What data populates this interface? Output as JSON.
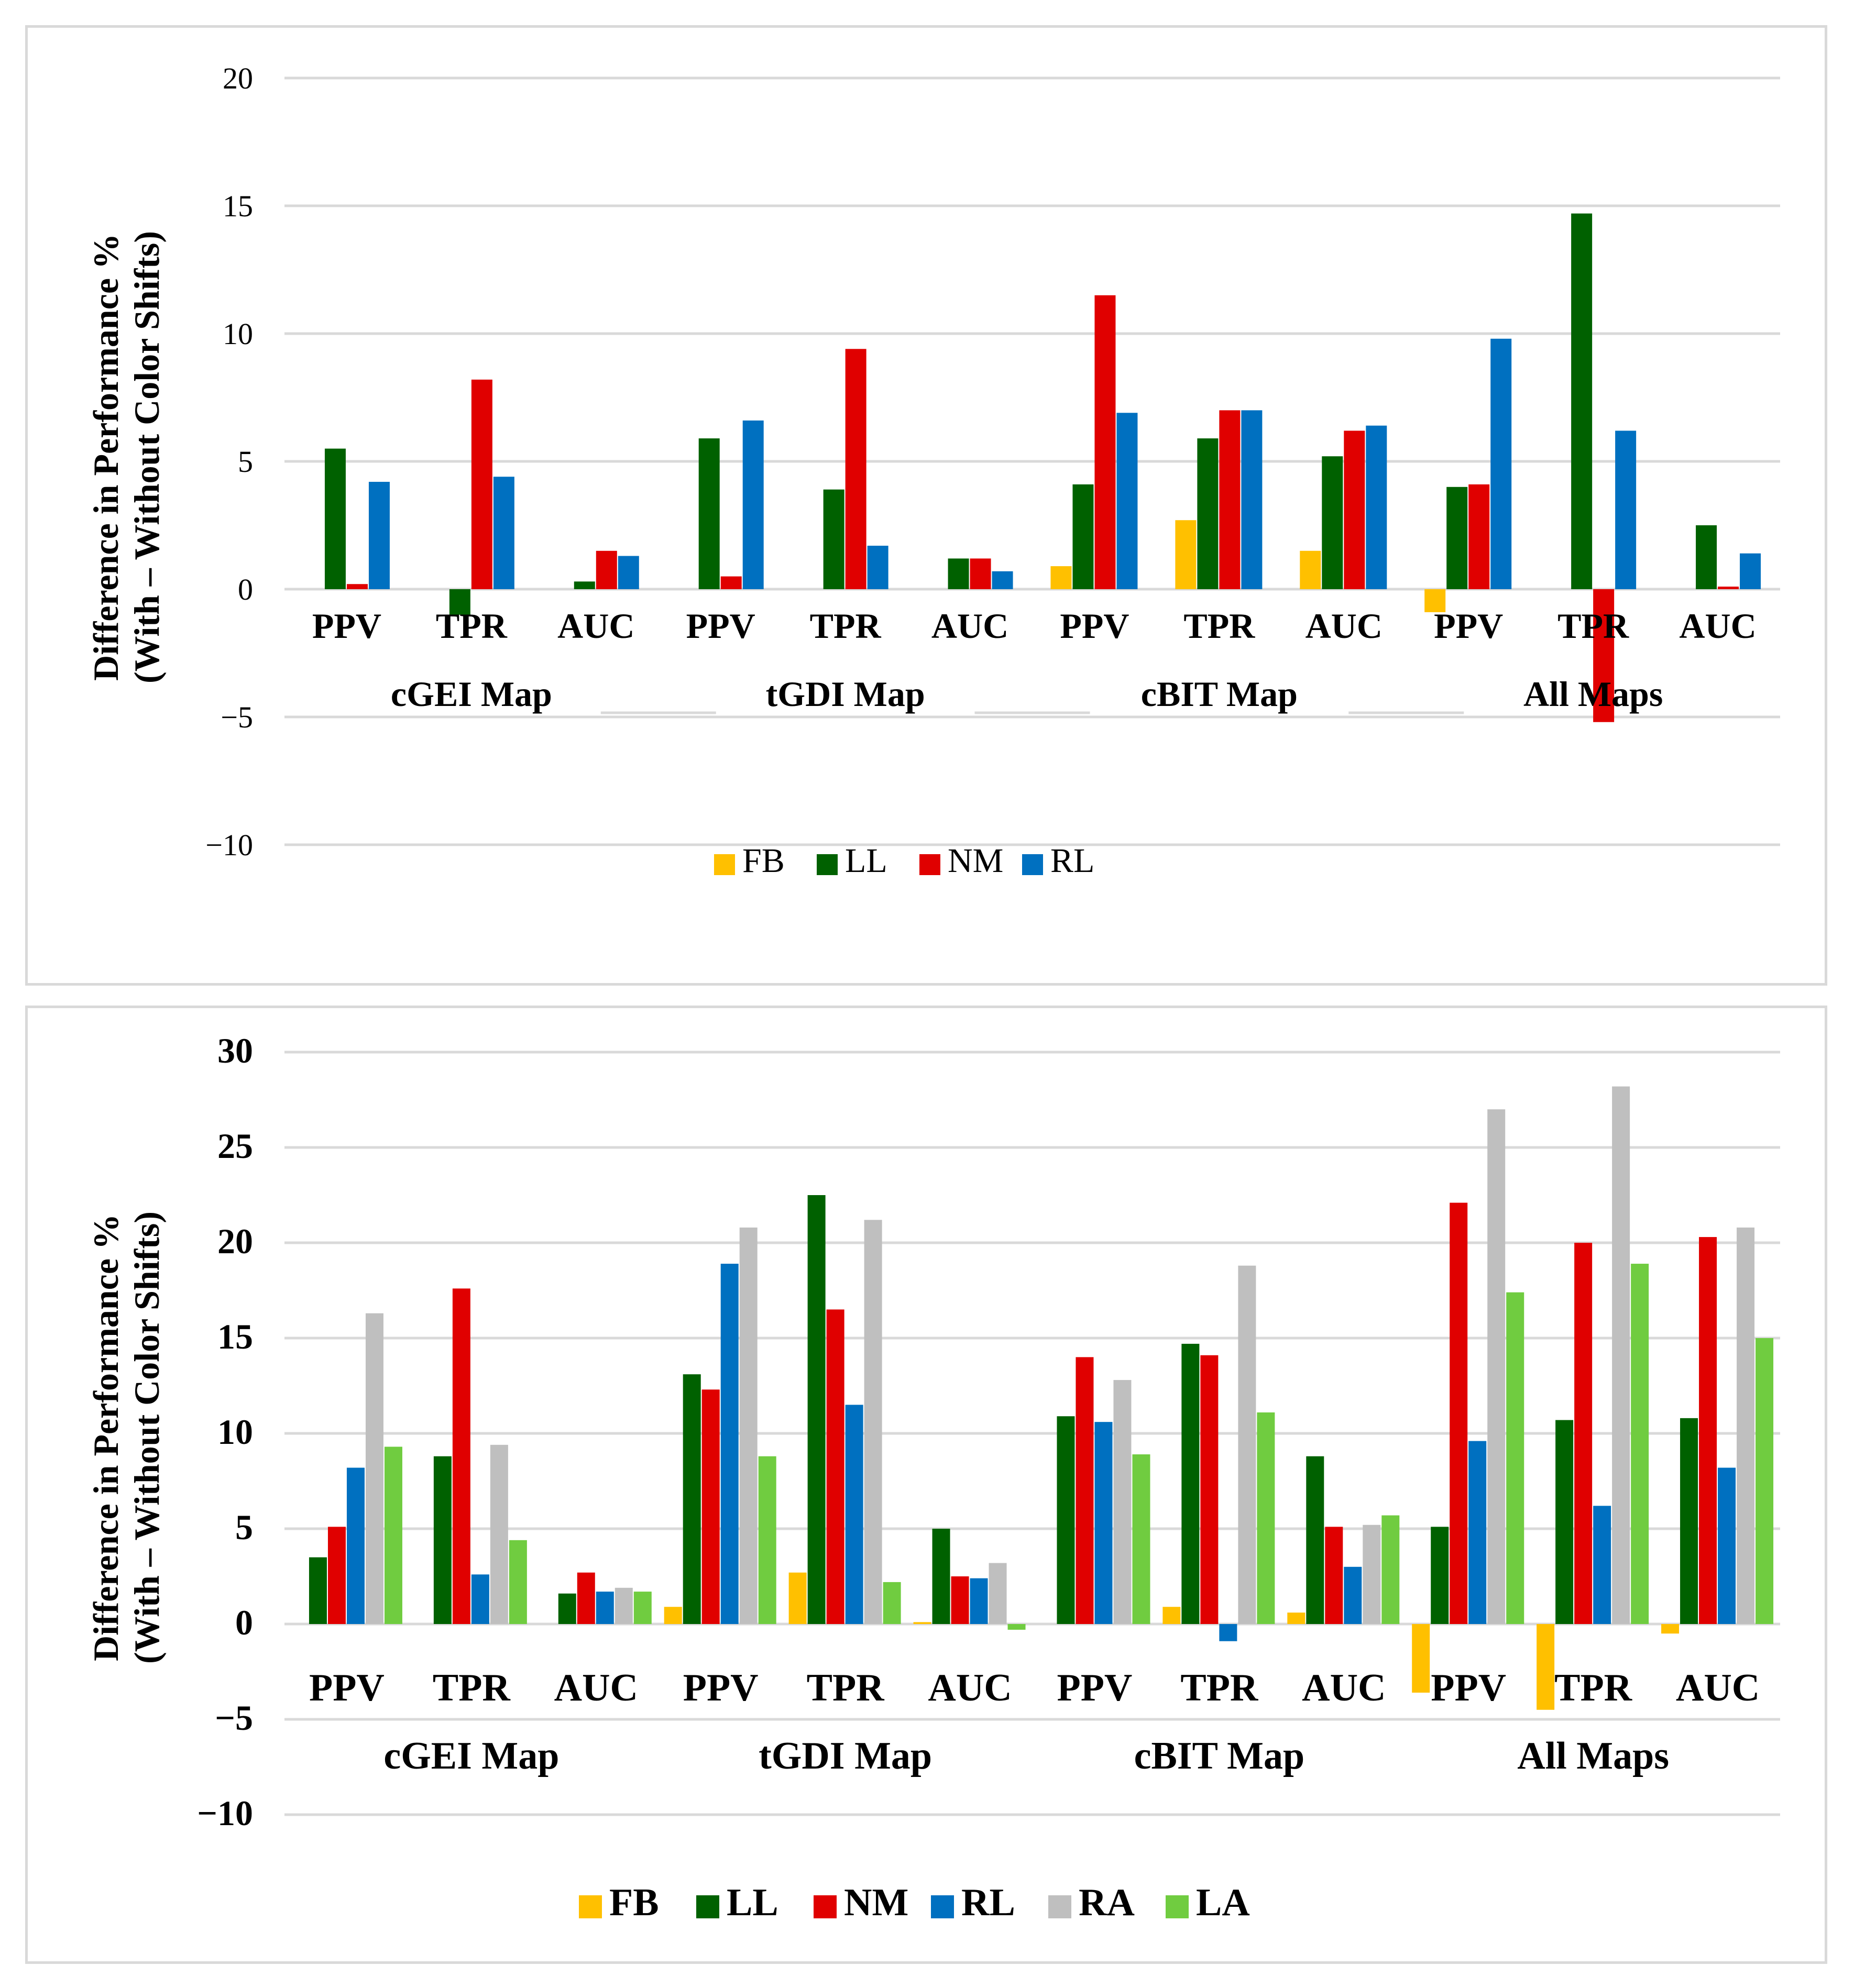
{
  "colors": {
    "FB": "#ffc000",
    "LL": "#006100",
    "NM": "#e00000",
    "RL": "#0070c0",
    "RA": "#bfbfbf",
    "LA": "#70cc40"
  },
  "chart_data": [
    {
      "type": "bar",
      "ylabel_line1": "Difference in Performance %",
      "ylabel_line2": "(With – Without Color Shifts)",
      "ylim": [
        -10,
        20
      ],
      "yticks": [
        20,
        15,
        10,
        5,
        0,
        -5,
        -10
      ],
      "ytick_labels": [
        "20",
        "15",
        "10",
        "5",
        "0",
        "−5",
        "−10"
      ],
      "grid": true,
      "legend_position": "bottom",
      "groups": [
        "cGEI Map",
        "tGDI Map",
        "cBIT Map",
        "All Maps"
      ],
      "metrics": [
        "PPV",
        "TPR",
        "AUC"
      ],
      "categories": [
        "cGEI Map / PPV",
        "cGEI Map / TPR",
        "cGEI Map / AUC",
        "tGDI Map / PPV",
        "tGDI Map / TPR",
        "tGDI Map / AUC",
        "cBIT Map / PPV",
        "cBIT Map / TPR",
        "cBIT Map / AUC",
        "All Maps / PPV",
        "All Maps / TPR",
        "All Maps / AUC"
      ],
      "series": [
        {
          "name": "FB",
          "values": [
            0,
            0,
            0,
            0,
            0,
            0,
            0.9,
            2.7,
            1.5,
            -0.9,
            0,
            0
          ]
        },
        {
          "name": "LL",
          "values": [
            5.5,
            -1.0,
            0.3,
            5.9,
            3.9,
            1.2,
            4.1,
            5.9,
            5.2,
            4.0,
            14.7,
            2.5
          ]
        },
        {
          "name": "NM",
          "values": [
            0.2,
            8.2,
            1.5,
            0.5,
            9.4,
            1.2,
            11.5,
            7.0,
            6.2,
            4.1,
            -5.2,
            0.1
          ]
        },
        {
          "name": "RL",
          "values": [
            4.2,
            4.4,
            1.3,
            6.6,
            1.7,
            0.7,
            6.9,
            7.0,
            6.4,
            9.8,
            6.2,
            1.4
          ]
        }
      ]
    },
    {
      "type": "bar",
      "ylabel_line1": "Difference in Performance %",
      "ylabel_line2": "(With – Without Color Shifts)",
      "ylim": [
        -10,
        30
      ],
      "yticks": [
        30,
        25,
        20,
        15,
        10,
        5,
        0,
        -5,
        -10
      ],
      "ytick_labels": [
        "30",
        "25",
        "20",
        "15",
        "10",
        "5",
        "0",
        "−5",
        "−10"
      ],
      "grid": true,
      "legend_position": "bottom",
      "groups": [
        "cGEI Map",
        "tGDI Map",
        "cBIT Map",
        "All Maps"
      ],
      "metrics": [
        "PPV",
        "TPR",
        "AUC"
      ],
      "categories": [
        "cGEI Map / PPV",
        "cGEI Map / TPR",
        "cGEI Map / AUC",
        "tGDI Map / PPV",
        "tGDI Map / TPR",
        "tGDI Map / AUC",
        "cBIT Map / PPV",
        "cBIT Map / TPR",
        "cBIT Map / AUC",
        "All Maps / PPV",
        "All Maps / TPR",
        "All Maps / AUC"
      ],
      "series": [
        {
          "name": "FB",
          "values": [
            0,
            0,
            0,
            0.9,
            2.7,
            0.1,
            0,
            0.9,
            0.6,
            -3.6,
            -4.5,
            -0.5
          ]
        },
        {
          "name": "LL",
          "values": [
            3.5,
            8.8,
            1.6,
            13.1,
            22.5,
            5.0,
            10.9,
            14.7,
            8.8,
            5.1,
            10.7,
            10.8
          ]
        },
        {
          "name": "NM",
          "values": [
            5.1,
            17.6,
            2.7,
            12.3,
            16.5,
            2.5,
            14.0,
            14.1,
            5.1,
            22.1,
            20.0,
            20.3
          ]
        },
        {
          "name": "RL",
          "values": [
            8.2,
            2.6,
            1.7,
            18.9,
            11.5,
            2.4,
            10.6,
            -0.9,
            3.0,
            9.6,
            6.2,
            8.2
          ]
        },
        {
          "name": "RA",
          "values": [
            16.3,
            9.4,
            1.9,
            20.8,
            21.2,
            3.2,
            12.8,
            18.8,
            5.2,
            27.0,
            28.2,
            20.8
          ]
        },
        {
          "name": "LA",
          "values": [
            9.3,
            4.4,
            1.7,
            8.8,
            2.2,
            -0.3,
            8.9,
            11.1,
            5.7,
            17.4,
            18.9,
            15.0
          ]
        }
      ]
    }
  ]
}
